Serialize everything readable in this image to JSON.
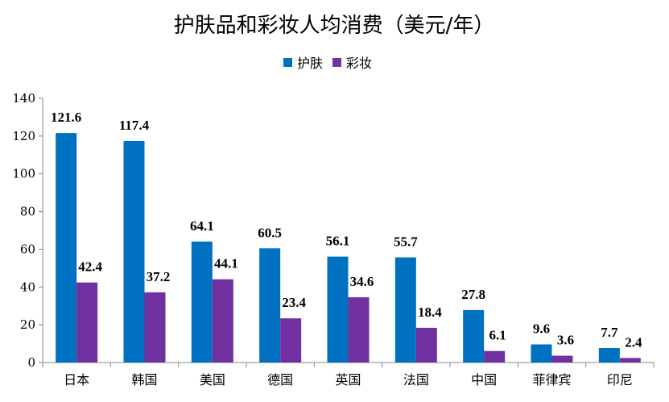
{
  "chart_data": {
    "type": "bar",
    "title": "护肤品和彩妆人均消费（美元/年）",
    "xlabel": "",
    "ylabel": "",
    "ylim": [
      0,
      140
    ],
    "yticks": [
      0,
      20,
      40,
      60,
      80,
      100,
      120,
      140
    ],
    "grid": false,
    "legend_position": "top-center",
    "categories": [
      "日本",
      "韩国",
      "美国",
      "德国",
      "英国",
      "法国",
      "中国",
      "菲律宾",
      "印尼"
    ],
    "series": [
      {
        "name": "护肤",
        "color": "#0070C0",
        "values": [
          121.6,
          117.4,
          64.1,
          60.5,
          56.1,
          55.7,
          27.8,
          9.6,
          7.7
        ],
        "labels": [
          "121.6",
          "117.4",
          "64.1",
          "60.5",
          "56.1",
          "55.7",
          "27.8",
          "9.6",
          "7.7"
        ]
      },
      {
        "name": "彩妆",
        "color": "#7030A0",
        "values": [
          42.4,
          37.2,
          44.1,
          23.4,
          34.6,
          18.4,
          6.1,
          3.6,
          2.4
        ],
        "labels": [
          "42.4",
          "37.2",
          "44.1",
          "23.4",
          "34.6",
          "18.4",
          "6.1",
          "3.6",
          "2.4"
        ]
      }
    ]
  }
}
